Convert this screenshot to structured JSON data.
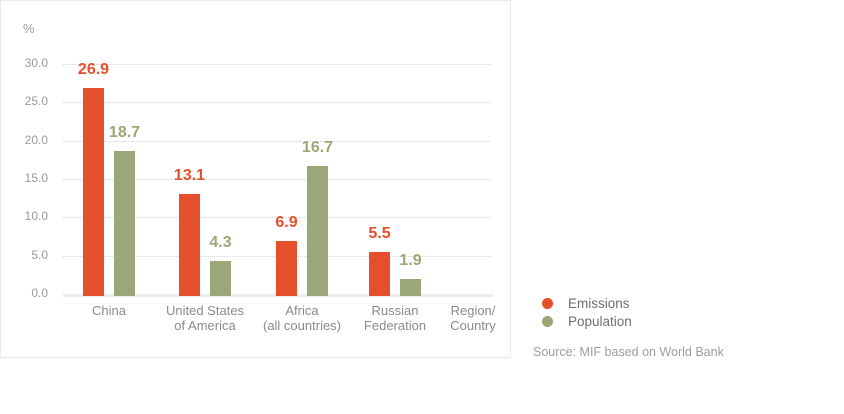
{
  "chart_data": {
    "type": "bar",
    "title": "",
    "ylabel": "%",
    "xlabel": "Region/Country",
    "xlabel_lines": [
      "Region/",
      "Country"
    ],
    "categories": [
      "China",
      "United States of America",
      "Africa (all countries)",
      "Russian Federation"
    ],
    "category_lines": [
      [
        "China"
      ],
      [
        "United States",
        "of America"
      ],
      [
        "Africa",
        "(all countries)"
      ],
      [
        "Russian",
        "Federation"
      ]
    ],
    "series": [
      {
        "name": "Emissions",
        "color": "#e4502c",
        "values": [
          26.9,
          13.1,
          6.9,
          5.5
        ]
      },
      {
        "name": "Population",
        "color": "#9ba776",
        "values": [
          18.7,
          4.3,
          16.7,
          1.9
        ]
      }
    ],
    "ylim": [
      0,
      30
    ],
    "yticks": [
      0,
      5,
      10,
      15,
      20,
      25,
      30
    ],
    "ytick_labels": [
      "0.0",
      "5.0",
      "10.0",
      "15.0",
      "20.0",
      "25.0",
      "30.0"
    ],
    "grid": true,
    "legend_position": "right-of-chart"
  },
  "source": {
    "text": "Source: MIF based on World Bank"
  },
  "colors": {
    "emissions": "#e4502c",
    "population": "#9ba776",
    "gridline": "#d6d6d6",
    "baseline": "#ececec",
    "tick_text": "#9a9a9a",
    "category_text": "#8b8b8b",
    "legend_text": "#6f6f6f",
    "source_text": "#9e9e9e",
    "panel_border": "#d9d9d9"
  }
}
